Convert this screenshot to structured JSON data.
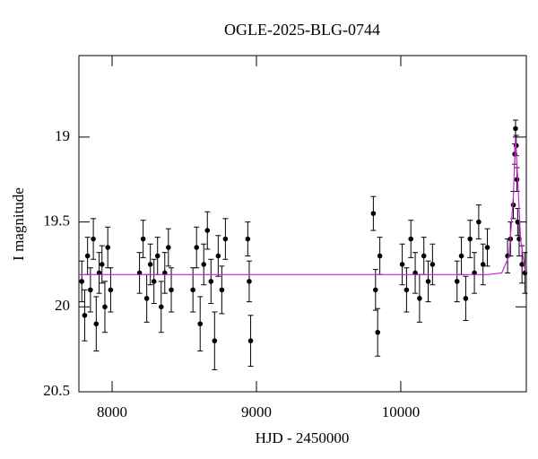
{
  "chart_data": {
    "type": "scatter",
    "title": "OGLE-2025-BLG-0744",
    "x_label": "HJD - 2450000",
    "y_label": "I magnitude",
    "xlim": [
      7770,
      10870
    ],
    "ylim": [
      20.5,
      18.52
    ],
    "xticks": [
      8000,
      9000,
      10000
    ],
    "yticks": [
      19,
      19.5,
      20,
      20.5
    ],
    "series": [
      {
        "type": "scatter",
        "color": "#000000",
        "x": [
          7790,
          7810,
          7830,
          7850,
          7870,
          7890,
          7910,
          7930,
          7950,
          7970,
          7990,
          8190,
          8215,
          8240,
          8265,
          8290,
          8315,
          8340,
          8365,
          8390,
          8410,
          8560,
          8585,
          8610,
          8635,
          8660,
          8685,
          8710,
          8735,
          8760,
          8785,
          8940,
          8950,
          8960,
          9810,
          9825,
          9840,
          9855,
          10010,
          10040,
          10070,
          10100,
          10130,
          10160,
          10190,
          10220,
          10390,
          10420,
          10450,
          10480,
          10510,
          10540,
          10570,
          10600,
          10740,
          10760,
          10780,
          10790,
          10795,
          10800,
          10805,
          10810,
          10820,
          10840,
          10860
        ],
        "values": [
          19.85,
          20.05,
          19.7,
          19.9,
          19.6,
          20.1,
          19.8,
          19.75,
          20.0,
          19.65,
          19.9,
          19.8,
          19.6,
          19.95,
          19.75,
          19.85,
          19.7,
          20.0,
          19.8,
          19.65,
          19.9,
          19.9,
          19.65,
          20.1,
          19.75,
          19.55,
          19.85,
          20.2,
          19.7,
          19.9,
          19.6,
          19.6,
          19.85,
          20.2,
          19.45,
          19.9,
          20.15,
          19.7,
          19.75,
          19.9,
          19.6,
          19.8,
          19.95,
          19.7,
          19.85,
          19.75,
          19.85,
          19.7,
          19.95,
          19.6,
          19.8,
          19.5,
          19.75,
          19.65,
          19.7,
          19.6,
          19.4,
          19.1,
          18.95,
          19.05,
          19.25,
          19.5,
          19.6,
          19.75,
          19.8
        ],
        "errors": [
          0.12,
          0.15,
          0.11,
          0.13,
          0.12,
          0.16,
          0.12,
          0.11,
          0.15,
          0.12,
          0.13,
          0.12,
          0.11,
          0.14,
          0.12,
          0.13,
          0.11,
          0.15,
          0.12,
          0.11,
          0.13,
          0.13,
          0.12,
          0.16,
          0.12,
          0.11,
          0.13,
          0.17,
          0.12,
          0.14,
          0.12,
          0.1,
          0.12,
          0.15,
          0.1,
          0.12,
          0.14,
          0.11,
          0.12,
          0.13,
          0.11,
          0.12,
          0.14,
          0.11,
          0.12,
          0.12,
          0.12,
          0.11,
          0.13,
          0.11,
          0.12,
          0.1,
          0.12,
          0.11,
          0.1,
          0.1,
          0.08,
          0.06,
          0.05,
          0.06,
          0.07,
          0.08,
          0.1,
          0.11,
          0.12
        ]
      },
      {
        "type": "line",
        "color": "#cc22cc",
        "x": [
          7770,
          10600,
          10700,
          10750,
          10780,
          10795,
          10810,
          10830,
          10860,
          10870
        ],
        "values": [
          19.81,
          19.81,
          19.8,
          19.7,
          19.35,
          19.0,
          19.25,
          19.6,
          19.78,
          19.8
        ]
      }
    ]
  }
}
